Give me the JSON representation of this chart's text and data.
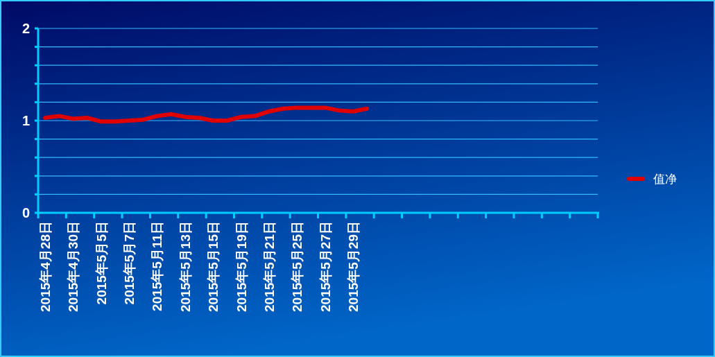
{
  "chart_data": {
    "type": "line",
    "categories": [
      "2015年4月28日",
      null,
      "2015年4月30日",
      null,
      "2015年5月5日",
      null,
      "2015年5月7日",
      null,
      "2015年5月11日",
      null,
      "2015年5月13日",
      null,
      "2015年5月15日",
      null,
      "2015年5月19日",
      null,
      "2015年5月21日",
      null,
      "2015年5月25日",
      null,
      "2015年5月27日",
      null,
      "2015年5月29日",
      null,
      null,
      null,
      null,
      null,
      null,
      null,
      null,
      null,
      null,
      null,
      null,
      null,
      null,
      null,
      null,
      null
    ],
    "series": [
      {
        "name": "值净",
        "color": "#e00000",
        "values": [
          1.03,
          1.05,
          1.02,
          1.03,
          0.99,
          0.99,
          1.0,
          1.01,
          1.05,
          1.07,
          1.04,
          1.03,
          1.0,
          1.0,
          1.04,
          1.05,
          1.1,
          1.13,
          1.14,
          1.14,
          1.14,
          1.11,
          1.1,
          1.13,
          null,
          null,
          null,
          null,
          null,
          null,
          null,
          null,
          null,
          null,
          null,
          null,
          null,
          null,
          null,
          null
        ]
      }
    ],
    "ylim": [
      0,
      2
    ],
    "yticks": [
      0,
      {
        "value": 0.2,
        "label": null
      },
      {
        "value": 0.4,
        "label": null
      },
      {
        "value": 0.6,
        "label": null
      },
      {
        "value": 0.8,
        "label": null
      },
      1,
      {
        "value": 1.2,
        "label": null
      },
      {
        "value": 1.4,
        "label": null
      },
      {
        "value": 1.6,
        "label": null
      },
      {
        "value": 1.8,
        "label": null
      },
      2
    ],
    "grid": "y",
    "legend": "right",
    "line_style": "solid"
  }
}
